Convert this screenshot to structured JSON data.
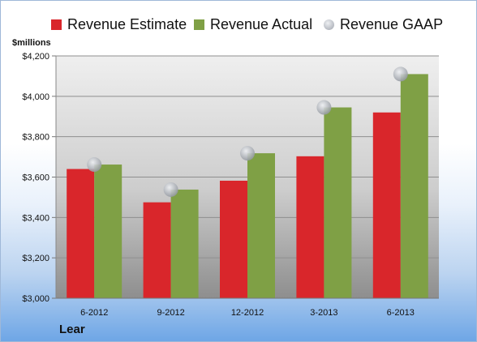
{
  "chart_data": {
    "type": "bar",
    "categories": [
      "6-2012",
      "9-2012",
      "12-2012",
      "3-2013",
      "6-2013"
    ],
    "series": [
      {
        "name": "Revenue Estimate",
        "kind": "bar",
        "color": "#d9262b",
        "values": [
          3640,
          3475,
          3582,
          3703,
          3920
        ]
      },
      {
        "name": "Revenue Actual",
        "kind": "bar",
        "color": "#7fa045",
        "values": [
          3662,
          3538,
          3718,
          3945,
          4110
        ]
      },
      {
        "name": "Revenue GAAP",
        "kind": "marker",
        "color": "#b8bcc4",
        "values": [
          3662,
          3538,
          3718,
          3945,
          4110
        ]
      }
    ],
    "ylabel": "$millions",
    "ylim": [
      3000,
      4200
    ],
    "yticks": [
      3000,
      3200,
      3400,
      3600,
      3800,
      4000,
      4200
    ],
    "ytick_labels": [
      "$3,000",
      "$3,200",
      "$3,400",
      "$3,600",
      "$3,800",
      "$4,000",
      "$4,200"
    ],
    "grid": true,
    "legend": "top"
  },
  "footer": {
    "company": "Lear"
  }
}
